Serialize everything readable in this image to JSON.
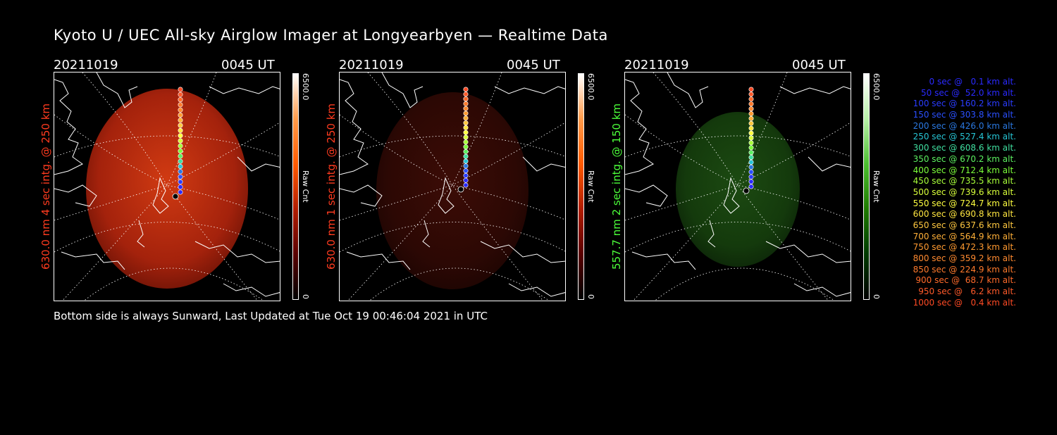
{
  "title": "Kyoto U / UEC All-sky Airglow Imager at Longyearbyen — Realtime Data",
  "footer": "Bottom side is always Sunward, Last Updated at Tue Oct 19 00:46:04 2021 in UTC",
  "colors": {
    "background": "#000000",
    "red_channel_label": "#ff3b1f",
    "green_channel_label": "#4cff3a",
    "trajectory_blue": "#2a2aff",
    "trajectory_cyan": "#26c6d6",
    "trajectory_green": "#7cff3a",
    "trajectory_yellow": "#ffe640",
    "trajectory_orange": "#ff9a30",
    "trajectory_red": "#ff5a2a"
  },
  "panels": [
    {
      "date": "20211019",
      "time": "0045 UT",
      "side_label": "630.0 nm 4 sec intg. @ 250 km",
      "colorbar_max": "6500.0",
      "colorbar_label": "Raw Cnt",
      "colorbar_min": "0",
      "image_color": "bright-red",
      "colorbar_gradient": "red"
    },
    {
      "date": "20211019",
      "time": "0045 UT",
      "side_label": "630.0 nm 1 sec intg. @ 250 km",
      "colorbar_max": "6500.0",
      "colorbar_label": "Raw Cnt",
      "colorbar_min": "0",
      "image_color": "dark-red",
      "colorbar_gradient": "red"
    },
    {
      "date": "20211019",
      "time": "0045 UT",
      "side_label": "557.7 nm 2 sec intg. @ 150 km",
      "colorbar_max": "6500.0",
      "colorbar_label": "Raw Cnt",
      "colorbar_min": "0",
      "image_color": "dark-green",
      "colorbar_gradient": "green"
    }
  ],
  "trajectory_legend": [
    {
      "text": "0 sec @   0.1 km alt.",
      "color": "#2a2aff"
    },
    {
      "text": "50 sec @  52.0 km alt.",
      "color": "#2a2aff"
    },
    {
      "text": "100 sec @ 160.2 km alt.",
      "color": "#2a3cff"
    },
    {
      "text": "150 sec @ 303.8 km alt.",
      "color": "#2a50ff"
    },
    {
      "text": "200 sec @ 426.0 km alt.",
      "color": "#2a78e0"
    },
    {
      "text": "250 sec @ 527.4 km alt.",
      "color": "#26c6d6"
    },
    {
      "text": "300 sec @ 608.6 km alt.",
      "color": "#40e0a0"
    },
    {
      "text": "350 sec @ 670.2 km alt.",
      "color": "#5cf060"
    },
    {
      "text": "400 sec @ 712.4 km alt.",
      "color": "#7cff3a"
    },
    {
      "text": "450 sec @ 735.5 km alt.",
      "color": "#a8ff3a"
    },
    {
      "text": "500 sec @ 739.6 km alt.",
      "color": "#d8ff3a"
    },
    {
      "text": "550 sec @ 724.7 km alt.",
      "color": "#ffff40"
    },
    {
      "text": "600 sec @ 690.8 km alt.",
      "color": "#ffe640"
    },
    {
      "text": "650 sec @ 637.6 km alt.",
      "color": "#ffc840"
    },
    {
      "text": "700 sec @ 564.9 km alt.",
      "color": "#ffb038"
    },
    {
      "text": "750 sec @ 472.3 km alt.",
      "color": "#ff9a30"
    },
    {
      "text": "800 sec @ 359.2 km alt.",
      "color": "#ff8a30"
    },
    {
      "text": "850 sec @ 224.9 km alt.",
      "color": "#ff7a2c"
    },
    {
      "text": "900 sec @  68.7 km alt.",
      "color": "#ff6a2a"
    },
    {
      "text": "950 sec @   6.2 km alt.",
      "color": "#ff5a2a"
    },
    {
      "text": "1000 sec @   0.4 km alt.",
      "color": "#ff4a24"
    }
  ]
}
